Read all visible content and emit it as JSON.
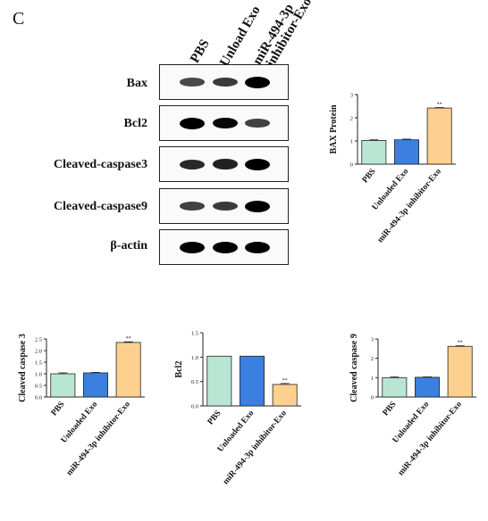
{
  "panel_letter": "C",
  "western_blot": {
    "lanes": [
      "PBS",
      "Unload Exo",
      "miR-494-3p",
      "inhibitor-Exo"
    ],
    "rows": [
      {
        "label": "Bax",
        "intensity": [
          0.55,
          0.65,
          1.0
        ]
      },
      {
        "label": "Bcl2",
        "intensity": [
          1.0,
          0.95,
          0.6
        ]
      },
      {
        "label": "Cleaved-caspase3",
        "intensity": [
          0.75,
          0.8,
          1.0
        ]
      },
      {
        "label": "Cleaved-caspase9",
        "intensity": [
          0.6,
          0.65,
          1.0
        ]
      },
      {
        "label": "β-actin",
        "intensity": [
          1.0,
          1.0,
          1.0
        ]
      }
    ]
  },
  "colors": {
    "pbs": "#b9e6d3",
    "unloaded": "#3b7fe0",
    "inhibitor": "#fdd08f"
  },
  "chart_data": [
    {
      "type": "bar",
      "categories": [
        "PBS",
        "Unloaded Exo",
        "miR-494-3p inhibitor-Exo"
      ],
      "values": [
        1.02,
        1.05,
        2.42
      ],
      "errors": [
        0.03,
        0.03,
        0.02
      ],
      "significance": [
        "",
        "",
        "**"
      ],
      "ylabel": "BAX Protein",
      "ylim": [
        0,
        3
      ],
      "yticks": [
        "0",
        "1",
        "2",
        "3"
      ]
    },
    {
      "type": "bar",
      "categories": [
        "PBS",
        "Unloaded Exo",
        "miR-494-3p inhibitor-Exo"
      ],
      "values": [
        1.0,
        1.04,
        2.35
      ],
      "errors": [
        0.04,
        0.02,
        0.03
      ],
      "significance": [
        "",
        "",
        "**"
      ],
      "ylabel": "Cleaved caspase 3",
      "ylim": [
        0,
        2.5
      ],
      "yticks": [
        "0.0",
        "0.5",
        "1.0",
        "1.5",
        "2.0",
        "2.5"
      ]
    },
    {
      "type": "bar",
      "categories": [
        "PBS",
        "Unloaded Exo",
        "miR-494-3p inhibitor-Exo"
      ],
      "values": [
        1.02,
        1.02,
        0.44
      ],
      "errors": [
        0.0,
        0.0,
        0.02
      ],
      "significance": [
        "",
        "",
        "**"
      ],
      "ylabel": "Bcl2",
      "ylim": [
        0,
        1.5
      ],
      "yticks": [
        "0.0",
        "0.5",
        "1.0",
        "1.5"
      ]
    },
    {
      "type": "bar",
      "categories": [
        "PBS",
        "Unloaded Exo",
        "miR-494-3p inhibitor-Exo"
      ],
      "values": [
        1.0,
        1.02,
        2.62
      ],
      "errors": [
        0.05,
        0.02,
        0.03
      ],
      "significance": [
        "",
        "",
        "**"
      ],
      "ylabel": "Cleaved caspase 9",
      "ylim": [
        0,
        3
      ],
      "yticks": [
        "0",
        "1",
        "2",
        "3"
      ]
    }
  ]
}
